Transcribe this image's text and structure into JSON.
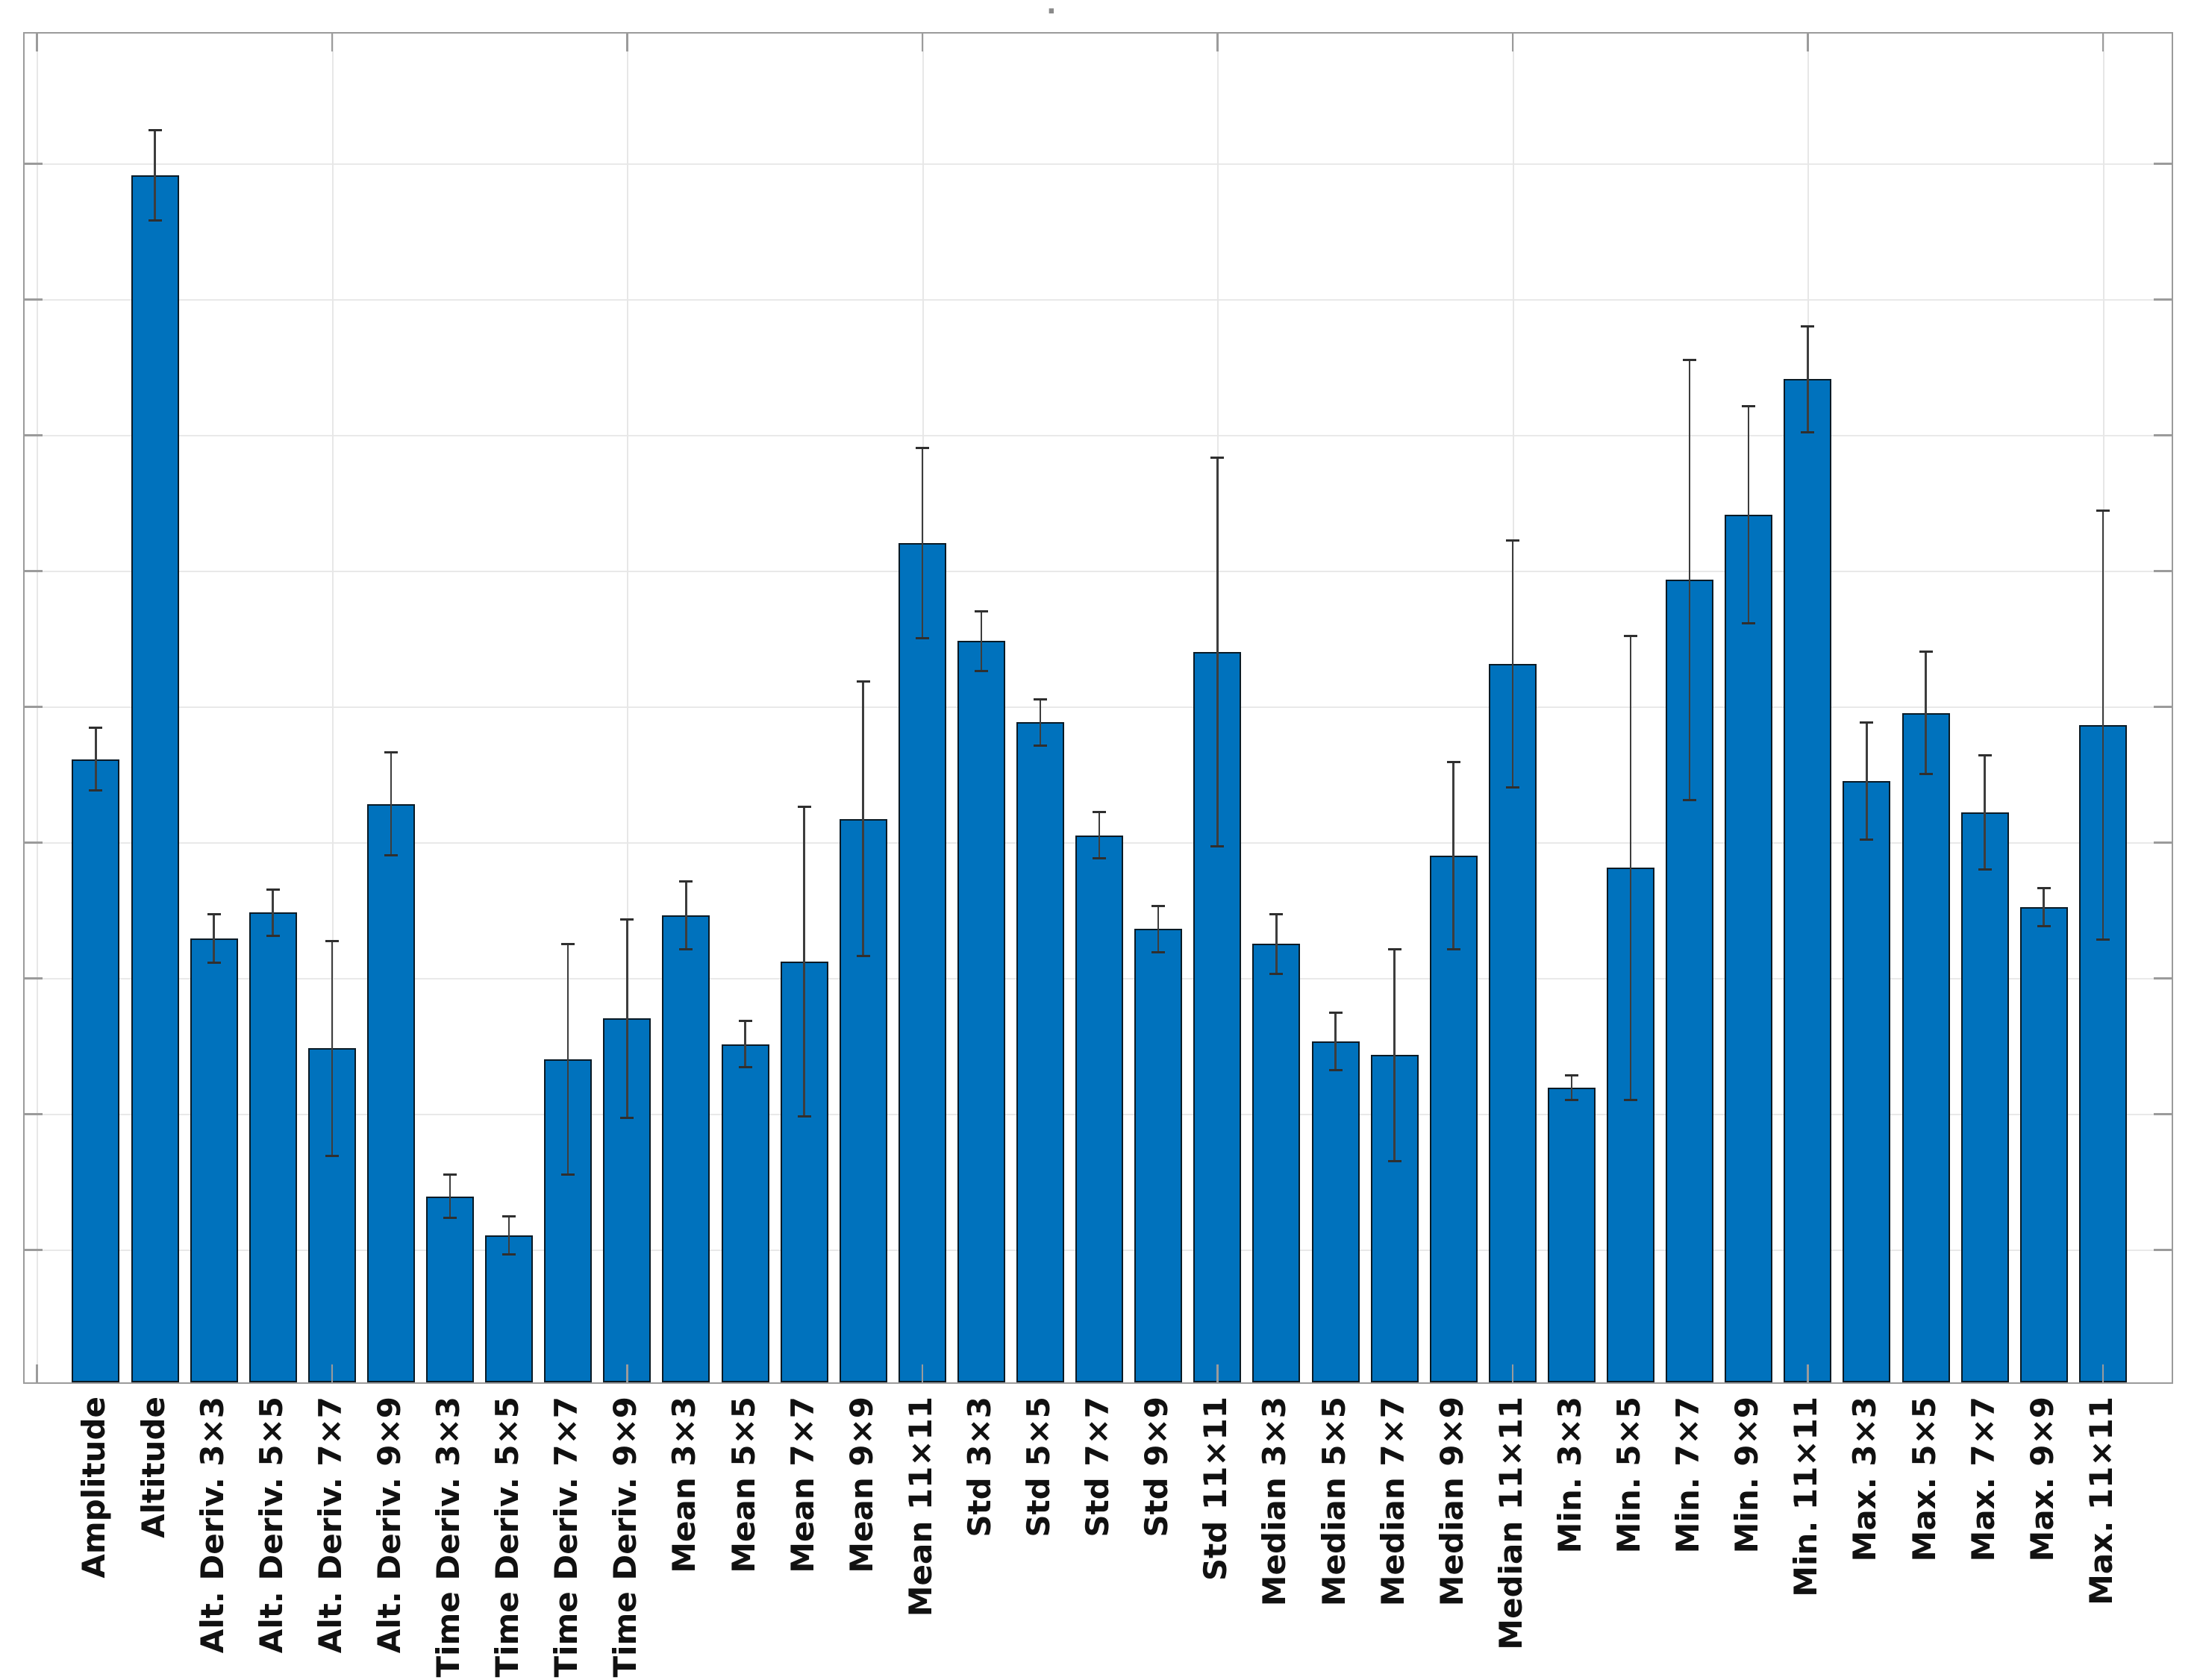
{
  "figure": {
    "title": "."
  },
  "chart_data": {
    "type": "bar",
    "title": "",
    "xlabel": "",
    "ylabel": "",
    "legend": null,
    "orientation": "vertical",
    "grid": "on",
    "y_tick_labels_visible": false,
    "x_tick_labels_visible": true,
    "value_units": "relative (one horizontal gridline division = 1 unit; axis shows no numeric labels)",
    "ylim": [
      0,
      9.96
    ],
    "y_gridline_step": 1,
    "x_gridline_data_positions": [
      0,
      5,
      10,
      15,
      20,
      25,
      30,
      35
    ],
    "error_bars": "symmetric, dark thin lines with caps",
    "categories": [
      "Amplitude",
      "Altitude",
      "Alt. Deriv. 3×3",
      "Alt. Deriv. 5×5",
      "Alt. Deriv. 7×7",
      "Alt. Deriv. 9×9",
      "Time Deriv. 3×3",
      "Time Deriv. 5×5",
      "Time Deriv. 7×7",
      "Time Deriv. 9×9",
      "Mean 3×3",
      "Mean 5×5",
      "Mean 7×7",
      "Mean 9×9",
      "Mean 11×11",
      "Std 3×3",
      "Std 5×5",
      "Std 7×7",
      "Std 9×9",
      "Std 11×11",
      "Median 3×3",
      "Median 5×5",
      "Median 7×7",
      "Median 9×9",
      "Median 11×11",
      "Min. 3×3",
      "Min. 5×5",
      "Min. 7×7",
      "Min. 9×9",
      "Min. 11×11",
      "Max. 3×3",
      "Max. 5×5",
      "Max. 7×7",
      "Max. 9×9",
      "Max. 11×11"
    ],
    "values": [
      4.59,
      8.89,
      3.27,
      3.46,
      2.46,
      4.26,
      1.37,
      1.08,
      2.38,
      2.68,
      3.44,
      2.49,
      3.1,
      4.15,
      6.18,
      5.46,
      4.86,
      4.03,
      3.34,
      5.38,
      3.23,
      2.51,
      2.41,
      3.88,
      5.29,
      2.17,
      3.79,
      5.91,
      6.39,
      7.39,
      4.43,
      4.93,
      4.2,
      3.5,
      4.84
    ],
    "errors": [
      0.23,
      0.33,
      0.18,
      0.17,
      0.79,
      0.38,
      0.16,
      0.14,
      0.85,
      0.73,
      0.25,
      0.17,
      1.14,
      1.01,
      0.7,
      0.22,
      0.17,
      0.17,
      0.17,
      1.43,
      0.22,
      0.21,
      0.78,
      0.69,
      0.91,
      0.09,
      1.71,
      1.62,
      0.8,
      0.39,
      0.43,
      0.45,
      0.42,
      0.14,
      1.58
    ],
    "colors": {
      "bar_fill": "#0072BD",
      "bar_edge": "#0a0a0a",
      "error_bar": "#3d3d3d",
      "grid": "#e9e9e9",
      "axis_box": "#9b9b9b",
      "label_text": "#111111",
      "background": "#ffffff"
    }
  }
}
